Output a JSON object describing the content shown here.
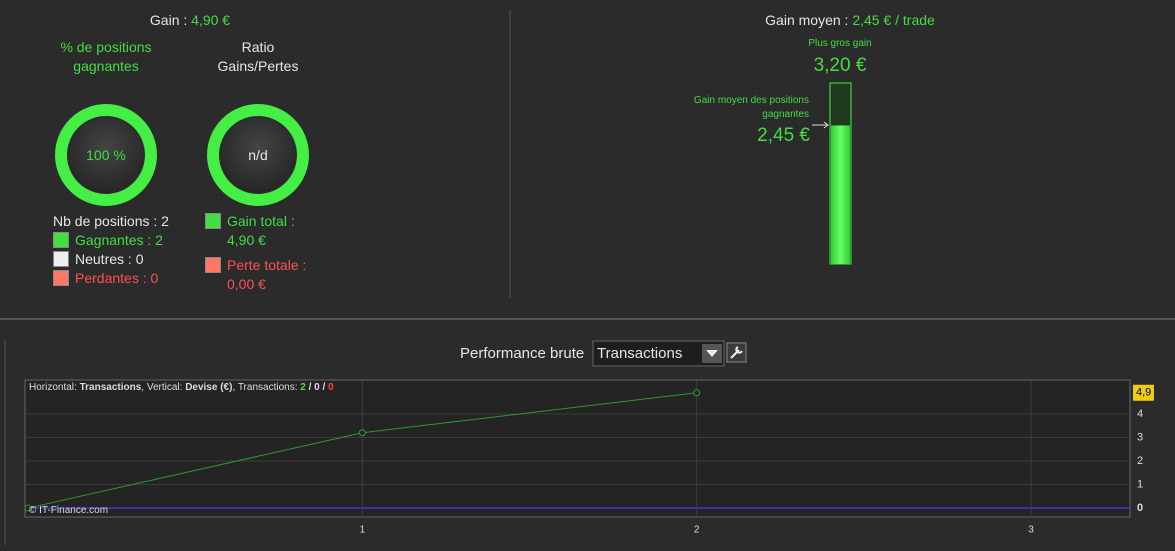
{
  "summary": {
    "gain_label": "Gain :",
    "gain_value": "4,90 €",
    "win_title": "% de positions gagnantes",
    "win_value": "100 %",
    "ratio_title": "Ratio Gains/Pertes",
    "ratio_value": "n/d",
    "positions": "Nb de positions : 2",
    "legend": [
      {
        "label": "Gagnantes : 2",
        "color": "#44dd44"
      },
      {
        "label": "Neutres : 0",
        "color": "#eeeeee"
      },
      {
        "label": "Perdantes : 0",
        "color": "#ff7766"
      }
    ],
    "gain_total_label": "Gain total :",
    "gain_total": "4,90 €",
    "loss_total_label": "Perte totale :",
    "loss_total": "0,00 €"
  },
  "average": {
    "label": "Gain moyen :",
    "value": "2,45 € / trade",
    "max_title": "Plus gros gain",
    "avg_title": "Gain moyen des positions gagnantes",
    "gauge": {
      "max": 3.2,
      "max_label": "3,20 €",
      "value": 2.45,
      "value_label": "2,45 €",
      "color": "#44ee44"
    }
  },
  "toolbar": {
    "title": "Performance brute",
    "dropdown": "Transactions"
  },
  "chart_data": {
    "type": "line",
    "info": [
      {
        "text": "Horizontal: ",
        "style": "plain"
      },
      {
        "text": "Transactions",
        "style": "bold"
      },
      {
        "text": ", Vertical: ",
        "style": "plain"
      },
      {
        "text": "Devise (€)",
        "style": "bold"
      },
      {
        "text": ", Transactions: ",
        "style": "plain"
      },
      {
        "text": "2",
        "style": "green"
      },
      {
        "text": " / ",
        "style": "bold"
      },
      {
        "text": "0",
        "style": "bold"
      },
      {
        "text": " / ",
        "style": "bold"
      },
      {
        "text": "0",
        "style": "red"
      }
    ],
    "credit": "© IT-Finance.com",
    "x": [
      0,
      1,
      2
    ],
    "values": [
      0,
      3.2,
      4.9
    ],
    "color": "#2f9a2f",
    "last_value": {
      "value": 4.9,
      "label": "4,9"
    },
    "baseline_color": "#3a3acc",
    "xlim": [
      0,
      3.29
    ],
    "ylim": [
      -0.38,
      5.4
    ],
    "xticks": [
      1,
      2,
      3
    ],
    "yticks": [
      0,
      1,
      2,
      3,
      4
    ],
    "grid": true
  }
}
